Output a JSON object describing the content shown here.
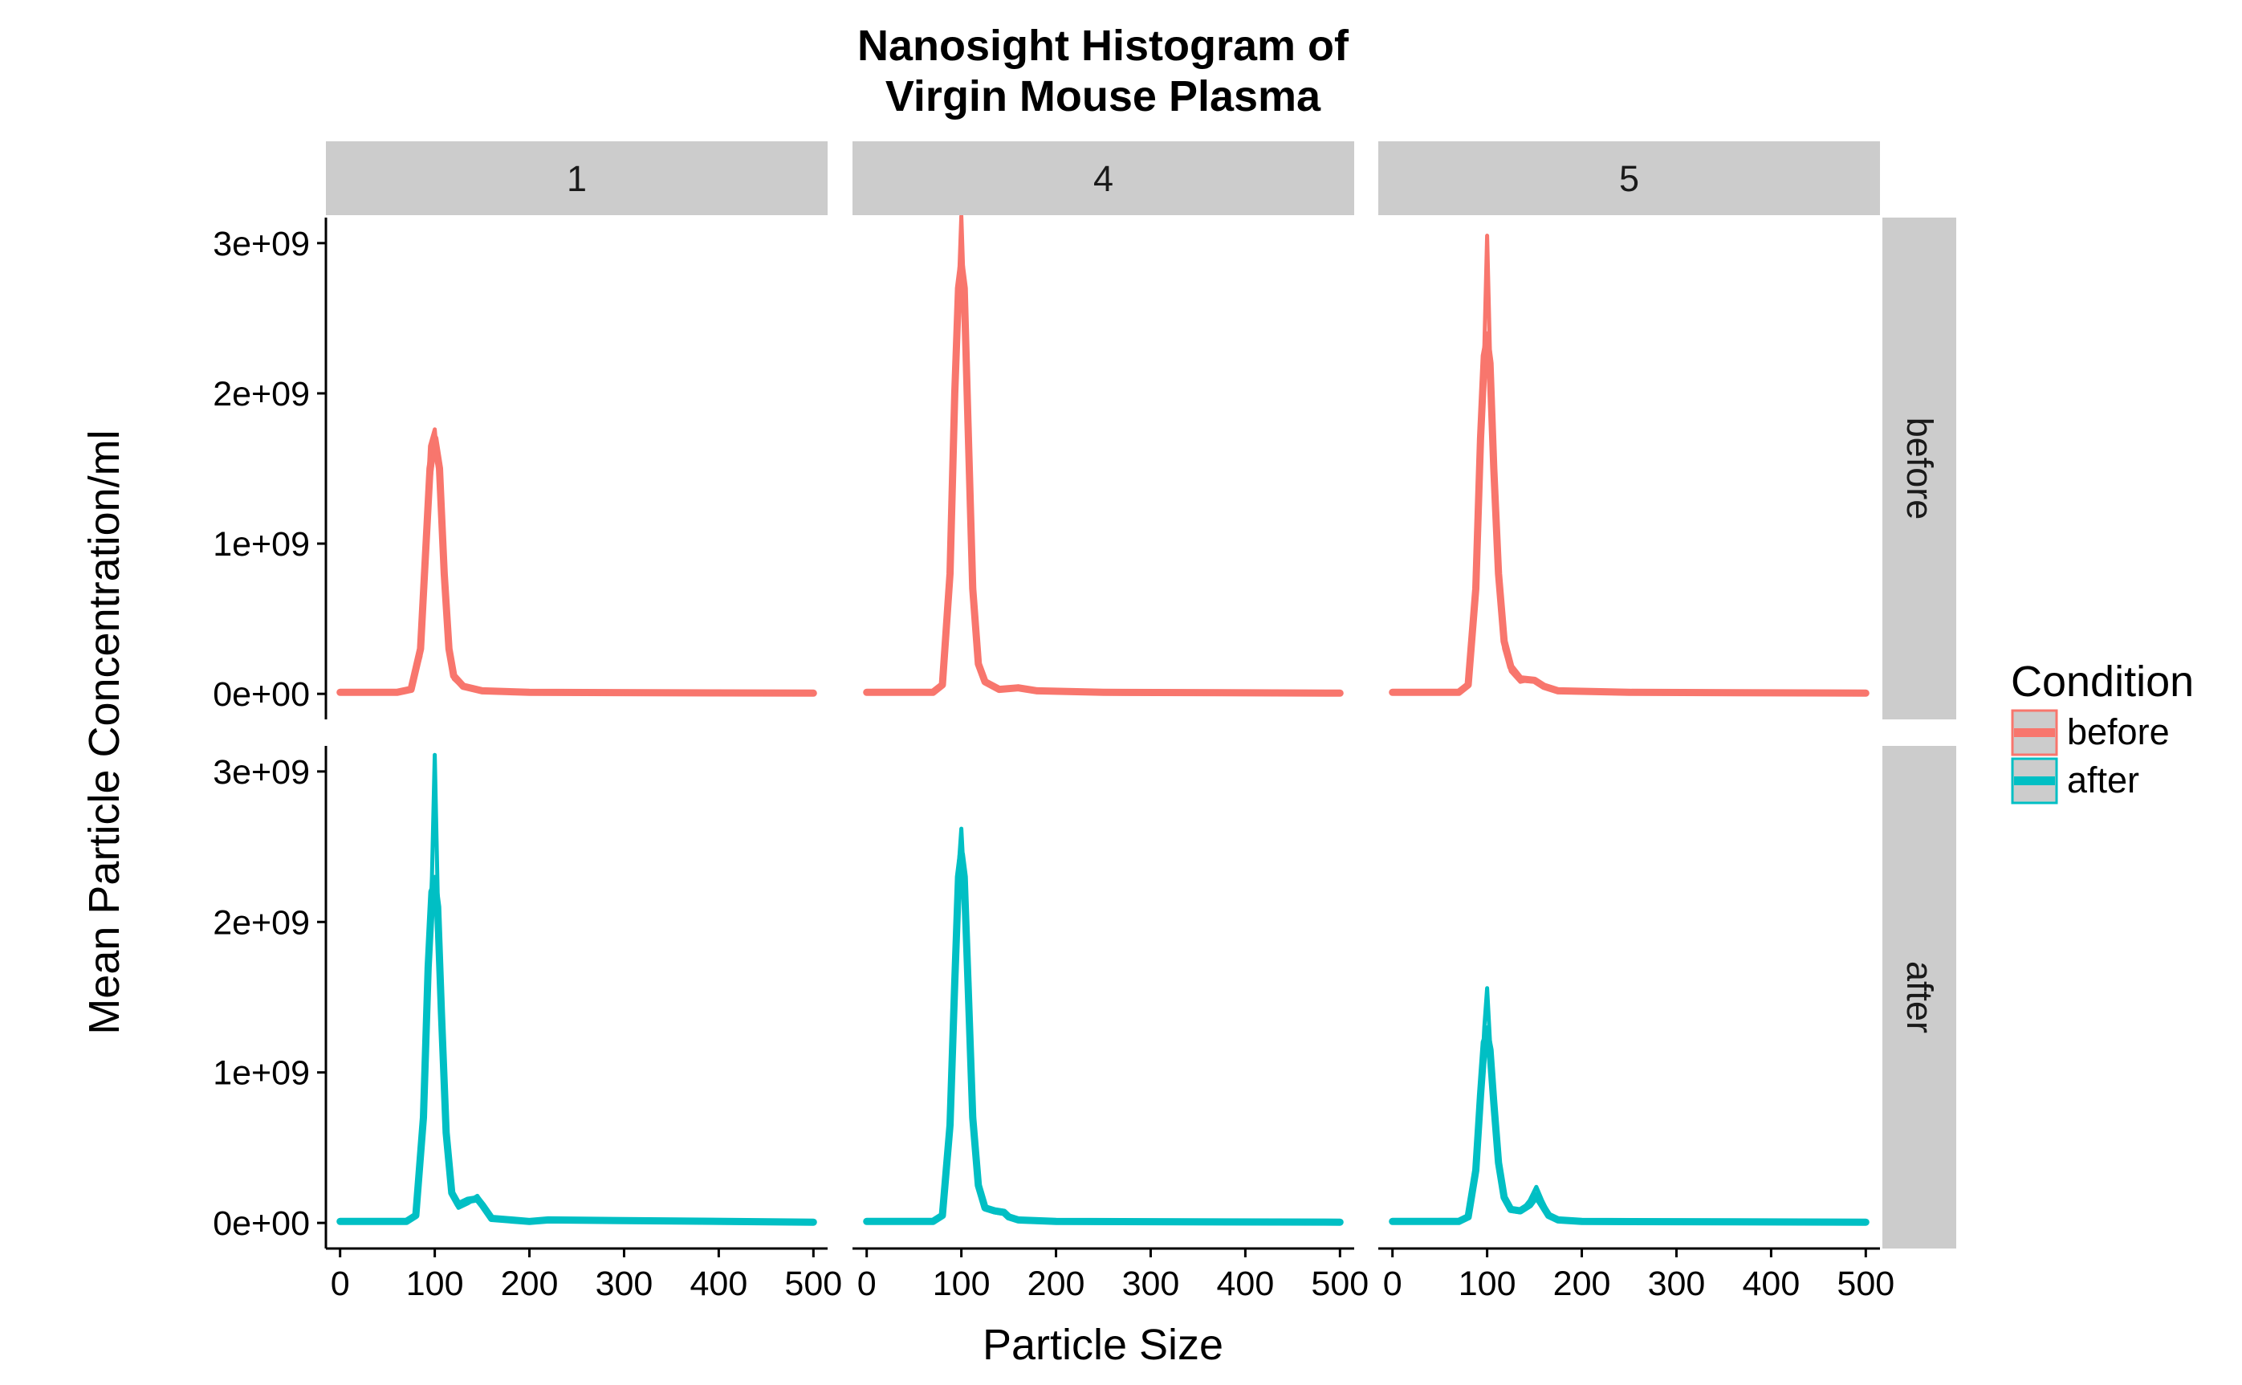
{
  "chart_data": {
    "type": "line",
    "title_lines": [
      "Nanosight Histogram of",
      "Virgin Mouse Plasma"
    ],
    "xlabel": "Particle Size",
    "ylabel": "Mean Particle Concentration/ml",
    "xlim": [
      -15,
      515
    ],
    "ylim": [
      -170000000,
      3170000000
    ],
    "x_ticks": [
      0,
      100,
      200,
      300,
      400,
      500
    ],
    "y_ticks": [
      0,
      1000000000,
      2000000000,
      3000000000
    ],
    "y_tick_labels": [
      "0e+00",
      "1e+09",
      "2e+09",
      "3e+09"
    ],
    "facet_columns": [
      "1",
      "4",
      "5"
    ],
    "facet_rows": [
      "before",
      "after"
    ],
    "legend": {
      "title": "Condition",
      "entries": [
        {
          "label": "before",
          "color": "#F8766D"
        },
        {
          "label": "after",
          "color": "#00BFC4"
        }
      ]
    },
    "colors": {
      "before": "#F8766D",
      "after": "#00BFC4",
      "strip": "#CCCCCC",
      "axis": "#000000"
    },
    "panels": [
      {
        "column": "1",
        "row": "before",
        "series": [
          {
            "name": "before",
            "x": [
              0,
              60,
              75,
              85,
              90,
              95,
              100,
              105,
              110,
              115,
              120,
              130,
              150,
              200,
              500
            ],
            "y": [
              10000000,
              10000000,
              30000000,
              300000000,
              900000000,
              1500000000,
              1700000000,
              1500000000,
              800000000,
              300000000,
              120000000,
              50000000,
              20000000,
              10000000,
              5000000
            ]
          },
          {
            "name": "before",
            "x": [
              0,
              60,
              75,
              85,
              90,
              95,
              100,
              105,
              110,
              115,
              120,
              130,
              150,
              200,
              500
            ],
            "y": [
              10000000,
              10000000,
              30000000,
              250000000,
              800000000,
              1400000000,
              1650000000,
              1450000000,
              750000000,
              250000000,
              100000000,
              40000000,
              20000000,
              10000000,
              5000000
            ]
          },
          {
            "name": "before",
            "x": [
              0,
              60,
              75,
              85,
              90,
              95,
              100,
              105,
              110,
              115,
              120,
              130,
              150,
              200,
              500
            ],
            "y": [
              10000000,
              10000000,
              40000000,
              350000000,
              1000000000,
              1650000000,
              1760000000,
              1400000000,
              700000000,
              280000000,
              110000000,
              50000000,
              25000000,
              10000000,
              5000000
            ]
          }
        ]
      },
      {
        "column": "4",
        "row": "before",
        "series": [
          {
            "name": "before",
            "x": [
              0,
              70,
              80,
              88,
              93,
              97,
              100,
              103,
              107,
              112,
              118,
              125,
              140,
              160,
              180,
              250,
              500
            ],
            "y": [
              10000000,
              10000000,
              60000000,
              800000000,
              2000000000,
              2700000000,
              2850000000,
              2700000000,
              1800000000,
              700000000,
              200000000,
              80000000,
              30000000,
              40000000,
              20000000,
              10000000,
              5000000
            ]
          },
          {
            "name": "before",
            "x": [
              0,
              70,
              80,
              88,
              93,
              97,
              100,
              103,
              107,
              112,
              118,
              125,
              140,
              160,
              180,
              250,
              500
            ],
            "y": [
              10000000,
              10000000,
              50000000,
              700000000,
              1900000000,
              2650000000,
              3180000000,
              2600000000,
              1600000000,
              600000000,
              180000000,
              70000000,
              30000000,
              50000000,
              20000000,
              10000000,
              5000000
            ]
          },
          {
            "name": "before",
            "x": [
              0,
              70,
              80,
              88,
              93,
              97,
              100,
              103,
              107,
              112,
              118,
              125,
              140,
              160,
              180,
              250,
              500
            ],
            "y": [
              10000000,
              10000000,
              70000000,
              900000000,
              2100000000,
              2750000000,
              2900000000,
              2650000000,
              1700000000,
              650000000,
              190000000,
              75000000,
              30000000,
              45000000,
              20000000,
              10000000,
              5000000
            ]
          }
        ]
      },
      {
        "column": "5",
        "row": "before",
        "series": [
          {
            "name": "before",
            "x": [
              0,
              70,
              80,
              88,
              93,
              97,
              100,
              103,
              107,
              112,
              118,
              125,
              135,
              150,
              160,
              175,
              250,
              500
            ],
            "y": [
              10000000,
              10000000,
              60000000,
              700000000,
              1700000000,
              2250000000,
              2350000000,
              2200000000,
              1500000000,
              800000000,
              350000000,
              180000000,
              100000000,
              90000000,
              50000000,
              20000000,
              10000000,
              5000000
            ]
          },
          {
            "name": "before",
            "x": [
              0,
              70,
              80,
              88,
              93,
              97,
              100,
              103,
              107,
              112,
              118,
              125,
              135,
              150,
              160,
              175,
              250,
              500
            ],
            "y": [
              10000000,
              10000000,
              50000000,
              650000000,
              1650000000,
              2300000000,
              3050000000,
              2250000000,
              1400000000,
              750000000,
              320000000,
              160000000,
              90000000,
              80000000,
              45000000,
              20000000,
              10000000,
              5000000
            ]
          },
          {
            "name": "before",
            "x": [
              0,
              70,
              80,
              88,
              93,
              97,
              100,
              103,
              107,
              112,
              118,
              125,
              135,
              150,
              160,
              175,
              250,
              500
            ],
            "y": [
              10000000,
              10000000,
              70000000,
              750000000,
              1750000000,
              2300000000,
              2400000000,
              2100000000,
              1450000000,
              700000000,
              300000000,
              150000000,
              80000000,
              100000000,
              55000000,
              20000000,
              10000000,
              5000000
            ]
          }
        ]
      },
      {
        "column": "1",
        "row": "after",
        "series": [
          {
            "name": "after",
            "x": [
              0,
              70,
              80,
              88,
              93,
              97,
              100,
              103,
              107,
              112,
              118,
              125,
              135,
              145,
              150,
              160,
              200,
              220,
              500
            ],
            "y": [
              10000000,
              10000000,
              50000000,
              700000000,
              1700000000,
              2200000000,
              2250000000,
              2100000000,
              1400000000,
              600000000,
              200000000,
              120000000,
              150000000,
              160000000,
              120000000,
              30000000,
              10000000,
              20000000,
              5000000
            ]
          },
          {
            "name": "after",
            "x": [
              0,
              70,
              80,
              88,
              93,
              97,
              100,
              103,
              107,
              112,
              118,
              125,
              135,
              145,
              150,
              160,
              200,
              220,
              500
            ],
            "y": [
              10000000,
              10000000,
              40000000,
              650000000,
              1650000000,
              2300000000,
              3110000000,
              2200000000,
              1350000000,
              550000000,
              180000000,
              110000000,
              140000000,
              180000000,
              130000000,
              30000000,
              10000000,
              15000000,
              5000000
            ]
          },
          {
            "name": "after",
            "x": [
              0,
              70,
              80,
              88,
              93,
              97,
              100,
              103,
              107,
              112,
              118,
              125,
              135,
              145,
              150,
              160,
              200,
              220,
              500
            ],
            "y": [
              10000000,
              10000000,
              60000000,
              750000000,
              1750000000,
              2200000000,
              2300000000,
              2050000000,
              1300000000,
              580000000,
              190000000,
              100000000,
              130000000,
              170000000,
              110000000,
              30000000,
              10000000,
              20000000,
              5000000
            ]
          }
        ]
      },
      {
        "column": "4",
        "row": "after",
        "series": [
          {
            "name": "after",
            "x": [
              0,
              70,
              80,
              88,
              93,
              97,
              100,
              103,
              107,
              112,
              118,
              125,
              135,
              145,
              150,
              160,
              200,
              500
            ],
            "y": [
              10000000,
              10000000,
              50000000,
              650000000,
              1600000000,
              2300000000,
              2450000000,
              2300000000,
              1600000000,
              700000000,
              250000000,
              100000000,
              80000000,
              70000000,
              40000000,
              20000000,
              10000000,
              5000000
            ]
          },
          {
            "name": "after",
            "x": [
              0,
              70,
              80,
              88,
              93,
              97,
              100,
              103,
              107,
              112,
              118,
              125,
              135,
              145,
              150,
              160,
              200,
              500
            ],
            "y": [
              10000000,
              10000000,
              40000000,
              600000000,
              1550000000,
              2350000000,
              2620000000,
              2250000000,
              1500000000,
              650000000,
              230000000,
              90000000,
              70000000,
              60000000,
              35000000,
              20000000,
              10000000,
              5000000
            ]
          },
          {
            "name": "after",
            "x": [
              0,
              70,
              80,
              88,
              93,
              97,
              100,
              103,
              107,
              112,
              118,
              125,
              135,
              145,
              150,
              160,
              200,
              500
            ],
            "y": [
              10000000,
              10000000,
              60000000,
              700000000,
              1650000000,
              2250000000,
              2400000000,
              2200000000,
              1550000000,
              680000000,
              240000000,
              110000000,
              90000000,
              80000000,
              45000000,
              20000000,
              10000000,
              5000000
            ]
          }
        ]
      },
      {
        "column": "5",
        "row": "after",
        "series": [
          {
            "name": "after",
            "x": [
              0,
              70,
              80,
              88,
              93,
              97,
              100,
              103,
              107,
              112,
              118,
              125,
              135,
              145,
              152,
              158,
              165,
              175,
              200,
              500
            ],
            "y": [
              10000000,
              10000000,
              40000000,
              350000000,
              850000000,
              1200000000,
              1250000000,
              1150000000,
              800000000,
              400000000,
              170000000,
              90000000,
              80000000,
              120000000,
              180000000,
              120000000,
              50000000,
              20000000,
              10000000,
              5000000
            ]
          },
          {
            "name": "after",
            "x": [
              0,
              70,
              80,
              88,
              93,
              97,
              100,
              103,
              107,
              112,
              118,
              125,
              135,
              145,
              152,
              158,
              165,
              175,
              200,
              500
            ],
            "y": [
              10000000,
              10000000,
              30000000,
              300000000,
              800000000,
              1300000000,
              1560000000,
              1200000000,
              750000000,
              370000000,
              150000000,
              80000000,
              70000000,
              150000000,
              240000000,
              150000000,
              60000000,
              20000000,
              10000000,
              5000000
            ]
          },
          {
            "name": "after",
            "x": [
              0,
              70,
              80,
              88,
              93,
              97,
              100,
              103,
              107,
              112,
              118,
              125,
              135,
              145,
              152,
              158,
              165,
              175,
              200,
              500
            ],
            "y": [
              10000000,
              10000000,
              50000000,
              380000000,
              900000000,
              1250000000,
              1300000000,
              1100000000,
              780000000,
              380000000,
              160000000,
              85000000,
              75000000,
              110000000,
              160000000,
              110000000,
              45000000,
              20000000,
              10000000,
              5000000
            ]
          }
        ]
      }
    ]
  }
}
